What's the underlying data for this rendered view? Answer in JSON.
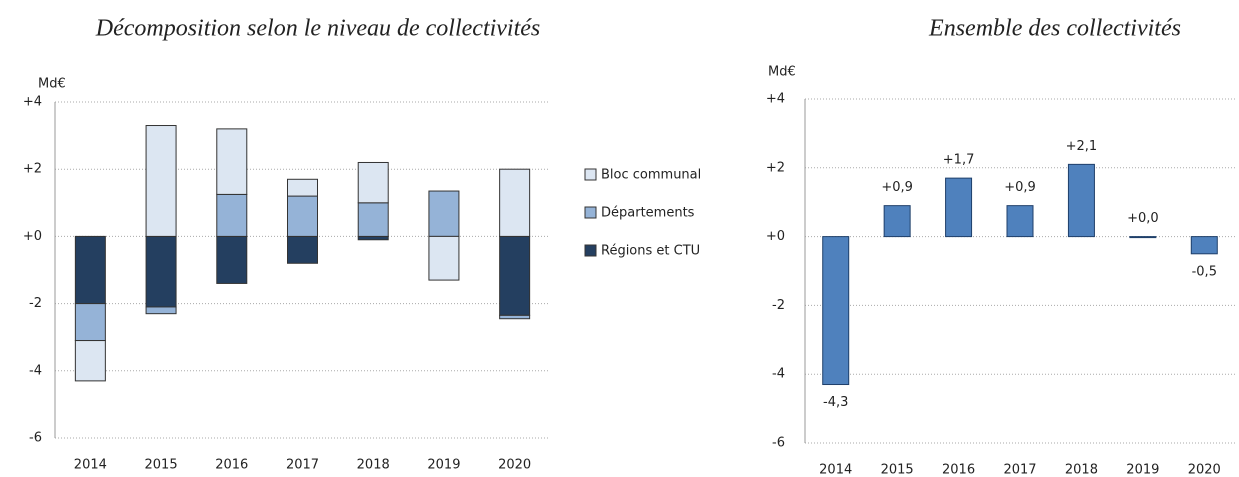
{
  "chart_data": [
    {
      "type": "bar",
      "stacked": true,
      "title": "Décomposition selon le niveau de collectivités",
      "y_label": "Md€",
      "categories": [
        "2014",
        "2015",
        "2016",
        "2017",
        "2018",
        "2019",
        "2020"
      ],
      "series": [
        {
          "name": "Régions et CTU",
          "color": "#243f60",
          "values": [
            -2.0,
            -2.1,
            -1.4,
            -0.8,
            -0.1,
            0,
            -2.35
          ]
        },
        {
          "name": "Départements",
          "color": "#95b3d7",
          "values": [
            -1.1,
            -0.2,
            1.25,
            1.2,
            1.0,
            1.35,
            -0.1
          ]
        },
        {
          "name": "Bloc communal",
          "color": "#dce6f2",
          "values": [
            -1.2,
            3.3,
            1.95,
            0.5,
            1.2,
            -1.3,
            2.0
          ]
        }
      ],
      "ylim": [
        -6,
        4
      ],
      "yticks": [
        -6,
        -4,
        -2,
        {
          "value": 0,
          "label": "+0"
        },
        {
          "value": 2,
          "label": "+2"
        },
        {
          "value": 4,
          "label": "+4"
        }
      ],
      "grid": true,
      "legend": "right"
    },
    {
      "type": "bar",
      "title": "Ensemble des collectivités",
      "y_label": "Md€",
      "categories": [
        "2014",
        "2015",
        "2016",
        "2017",
        "2018",
        "2019",
        "2020"
      ],
      "values": [
        -4.3,
        0.9,
        1.7,
        0.9,
        2.1,
        0.0,
        -0.5
      ],
      "value_labels": [
        "-4,3",
        "+0,9",
        "+1,7",
        "+0,9",
        "+2,1",
        "+0,0",
        "-0,5"
      ],
      "color": "#4f81bd",
      "ylim": [
        -6,
        4
      ],
      "yticks": [
        -6,
        -4,
        -2,
        {
          "value": 0,
          "label": "+0"
        },
        {
          "value": 2,
          "label": "+2"
        },
        {
          "value": 4,
          "label": "+4"
        }
      ],
      "grid": true
    }
  ]
}
